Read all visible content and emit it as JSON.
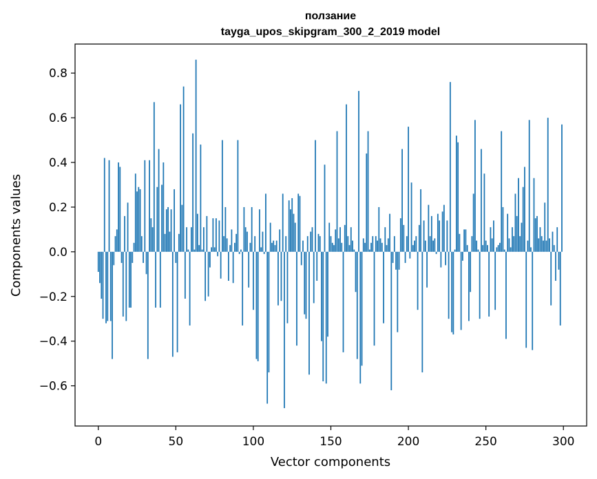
{
  "chart_data": {
    "type": "bar",
    "title": "ползание",
    "subtitle": "tayga_upos_skipgram_300_2_2019 model",
    "xlabel": "Vector components",
    "ylabel": "Components values",
    "xlim": [
      -15,
      315
    ],
    "ylim": [
      -0.78,
      0.93
    ],
    "xticks": [
      0,
      50,
      100,
      150,
      200,
      250,
      300
    ],
    "yticks": [
      -0.6,
      -0.4,
      -0.2,
      0.0,
      0.2,
      0.4,
      0.6,
      0.8
    ],
    "xtick_labels": [
      "0",
      "50",
      "100",
      "150",
      "200",
      "250",
      "300"
    ],
    "ytick_labels": [
      "−0.6",
      "−0.4",
      "−0.2",
      "0.0",
      "0.2",
      "0.4",
      "0.6",
      "0.8"
    ],
    "grid": false,
    "bar_color": "#1f77b4",
    "values": [
      -0.09,
      -0.14,
      -0.21,
      -0.3,
      0.42,
      -0.32,
      -0.31,
      0.41,
      -0.31,
      -0.48,
      -0.06,
      0.07,
      0.1,
      0.4,
      0.38,
      -0.05,
      -0.29,
      0.16,
      -0.31,
      0.22,
      -0.25,
      -0.25,
      -0.05,
      0.04,
      0.35,
      0.27,
      0.29,
      0.28,
      0.07,
      -0.05,
      0.41,
      -0.1,
      -0.48,
      0.41,
      0.15,
      0.11,
      0.67,
      -0.25,
      0.29,
      0.46,
      -0.25,
      0.3,
      0.4,
      0.08,
      0.19,
      0.2,
      0.09,
      0.19,
      -0.47,
      0.28,
      -0.05,
      -0.45,
      0.08,
      0.66,
      0.21,
      0.74,
      -0.21,
      0.11,
      0.01,
      -0.33,
      0.11,
      0.53,
      0.01,
      0.86,
      0.17,
      0.03,
      0.48,
      0.01,
      0.11,
      -0.22,
      0.16,
      -0.2,
      -0.07,
      0.02,
      0.15,
      0.02,
      0.15,
      -0.02,
      0.14,
      -0.12,
      0.5,
      0.07,
      0.2,
      0.06,
      -0.13,
      0.03,
      0.1,
      -0.14,
      0.04,
      0.08,
      0.5,
      -0.01,
      0.01,
      -0.33,
      0.2,
      0.11,
      0.09,
      -0.16,
      0.04,
      0.2,
      -0.26,
      0.07,
      -0.48,
      -0.49,
      0.19,
      0.02,
      0.09,
      -0.01,
      0.26,
      -0.68,
      -0.54,
      0.13,
      0.04,
      0.05,
      0.03,
      0.05,
      -0.24,
      0.1,
      -0.22,
      0.26,
      -0.7,
      0.07,
      -0.32,
      0.23,
      0.19,
      0.24,
      0.17,
      0.13,
      -0.42,
      0.26,
      0.25,
      -0.06,
      0.05,
      -0.28,
      -0.3,
      0.07,
      -0.55,
      0.09,
      0.11,
      -0.23,
      0.5,
      -0.13,
      0.08,
      0.07,
      -0.4,
      -0.58,
      0.39,
      -0.59,
      -0.38,
      0.13,
      0.07,
      0.04,
      0.03,
      0.1,
      0.54,
      0.06,
      0.11,
      0.04,
      -0.45,
      0.12,
      0.66,
      0.07,
      0.03,
      0.11,
      0.05,
      0.01,
      -0.18,
      -0.48,
      0.72,
      -0.59,
      -0.51,
      0.06,
      0.04,
      0.44,
      0.54,
      0.01,
      0.04,
      0.07,
      -0.42,
      0.07,
      0.05,
      0.2,
      0.06,
      0.04,
      -0.32,
      0.11,
      0.03,
      0.06,
      0.17,
      -0.62,
      -0.05,
      0.07,
      -0.08,
      -0.36,
      -0.08,
      0.15,
      0.46,
      0.12,
      -0.05,
      0.07,
      0.56,
      -0.03,
      0.31,
      0.03,
      0.05,
      0.07,
      -0.26,
      0.12,
      0.28,
      -0.54,
      0.14,
      0.05,
      -0.16,
      0.21,
      0.07,
      0.16,
      0.05,
      0.06,
      -0.01,
      0.17,
      0.14,
      -0.07,
      0.18,
      0.21,
      -0.06,
      0.14,
      -0.3,
      0.76,
      -0.36,
      -0.37,
      0.01,
      0.52,
      0.49,
      0.08,
      -0.35,
      -0.04,
      0.1,
      0.1,
      0.03,
      -0.31,
      -0.18,
      0.07,
      0.26,
      0.59,
      0.05,
      0.01,
      -0.3,
      0.46,
      0.03,
      0.35,
      0.05,
      0.03,
      -0.29,
      0.11,
      0.06,
      0.14,
      -0.26,
      0.02,
      0.03,
      0.04,
      0.54,
      0.2,
      0.01,
      -0.39,
      0.17,
      0.06,
      0.02,
      0.11,
      0.07,
      0.26,
      0.16,
      0.33,
      0.07,
      0.13,
      0.29,
      0.38,
      -0.43,
      0.05,
      0.59,
      0.02,
      -0.44,
      0.33,
      0.15,
      0.16,
      0.06,
      0.11,
      0.07,
      0.05,
      0.22,
      0.05,
      0.6,
      0.06,
      -0.24,
      0.09,
      0.03,
      -0.13,
      0.11,
      -0.08,
      -0.33,
      0.57
    ]
  }
}
